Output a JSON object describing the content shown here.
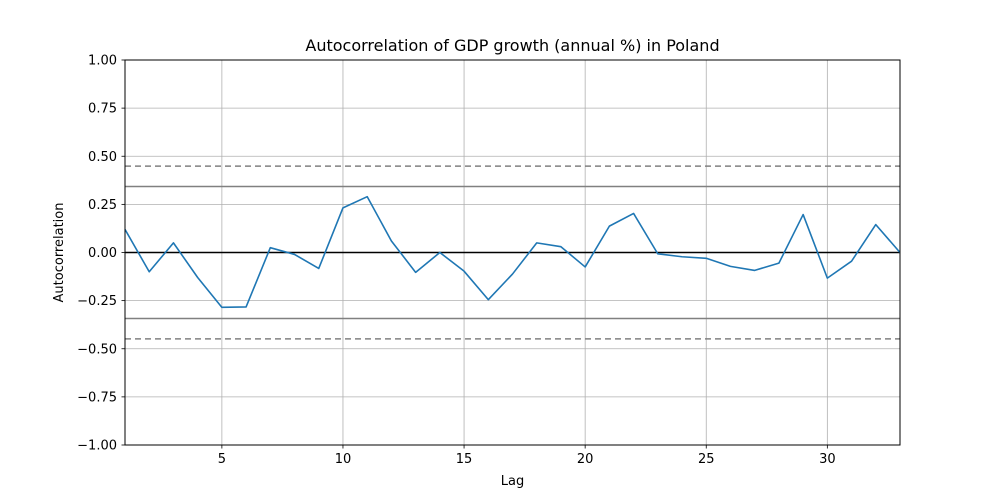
{
  "chart_data": {
    "type": "line",
    "title": "Autocorrelation of GDP growth (annual %) in Poland",
    "xlabel": "Lag",
    "ylabel": "Autocorrelation",
    "xlim": [
      1,
      33
    ],
    "ylim": [
      -1.0,
      1.0
    ],
    "x_ticks": [
      5,
      10,
      15,
      20,
      25,
      30
    ],
    "y_ticks": [
      -1.0,
      -0.75,
      -0.5,
      -0.25,
      0.0,
      0.25,
      0.5,
      0.75,
      1.0
    ],
    "y_tick_labels": [
      "−1.00",
      "−0.75",
      "−0.50",
      "−0.25",
      "0.00",
      "0.25",
      "0.50",
      "0.75",
      "1.00"
    ],
    "grid": true,
    "series": [
      {
        "color": "#1f77b4",
        "x": [
          1,
          2,
          3,
          4,
          5,
          6,
          7,
          8,
          9,
          10,
          11,
          12,
          13,
          14,
          15,
          16,
          17,
          18,
          19,
          20,
          21,
          22,
          23,
          24,
          25,
          26,
          27,
          28,
          29,
          30,
          31,
          32,
          33
        ],
        "values": [
          0.12,
          -0.1,
          0.05,
          -0.13,
          -0.285,
          -0.283,
          0.025,
          -0.01,
          -0.083,
          0.232,
          0.29,
          0.06,
          -0.103,
          0.0,
          -0.097,
          -0.245,
          -0.112,
          0.05,
          0.03,
          -0.075,
          0.137,
          0.203,
          -0.007,
          -0.022,
          -0.03,
          -0.072,
          -0.093,
          -0.055,
          0.197,
          -0.133,
          -0.045,
          0.145,
          0.0
        ]
      }
    ],
    "reference_lines": [
      {
        "y": 0.0,
        "color": "#000000",
        "style": "solid"
      },
      {
        "y": 0.343,
        "color": "#808080",
        "style": "solid"
      },
      {
        "y": -0.343,
        "color": "#808080",
        "style": "solid"
      },
      {
        "y": 0.449,
        "color": "#808080",
        "style": "dashed"
      },
      {
        "y": -0.449,
        "color": "#808080",
        "style": "dashed"
      }
    ]
  }
}
